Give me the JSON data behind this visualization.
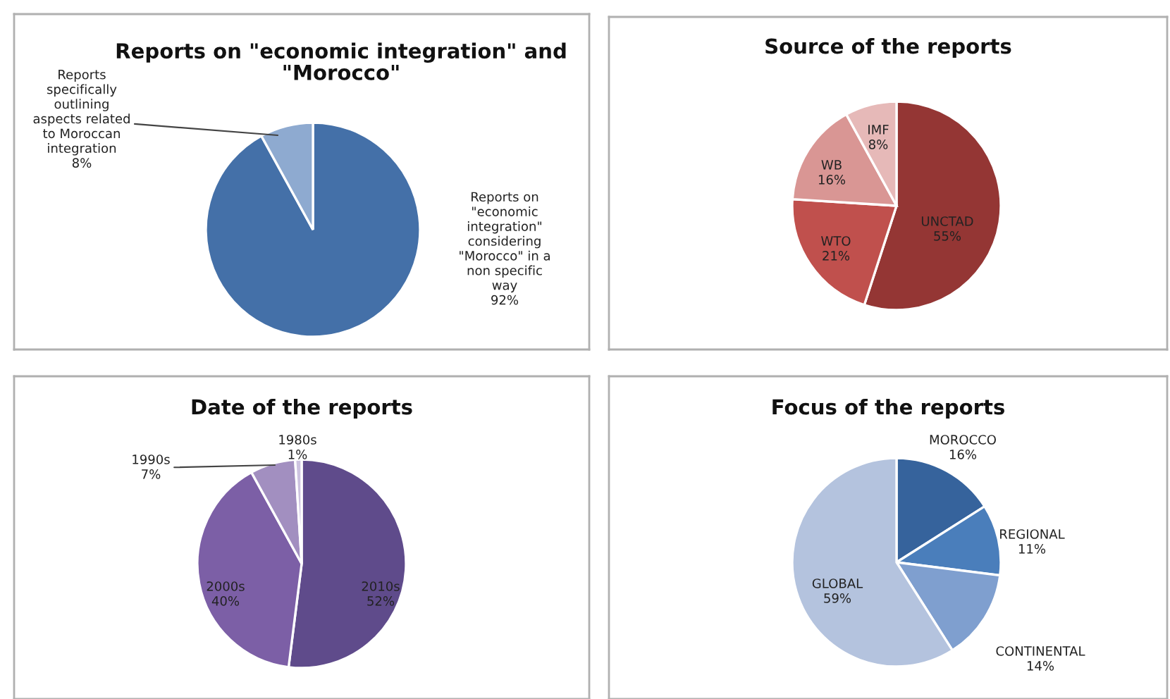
{
  "chart_data": [
    {
      "type": "pie",
      "title": "Reports on \"economic integration\" and\n\"Morocco\"",
      "categories": [
        "Reports on\n\"economic\nintegration\"\nconsidering\n\"Morocco\" in a\nnon specific\nway",
        "Reports\nspecifically\noutlining\naspects related\nto Moroccan\nintegration"
      ],
      "values": [
        92,
        8
      ],
      "colors": [
        "#4470a8",
        "#8eaad0"
      ],
      "value_labels": [
        "92%",
        "8%"
      ]
    },
    {
      "type": "pie",
      "title": "Source of the reports",
      "categories": [
        "UNCTAD",
        "WTO",
        "WB",
        "IMF"
      ],
      "values": [
        55,
        21,
        16,
        8
      ],
      "colors": [
        "#943634",
        "#c0504d",
        "#d99694",
        "#e6b9b8"
      ],
      "value_labels": [
        "55%",
        "21%",
        "16%",
        "8%"
      ]
    },
    {
      "type": "pie",
      "title": "Date of the reports",
      "categories": [
        "2010s",
        "2000s",
        "1990s",
        "1980s"
      ],
      "values": [
        52,
        40,
        7,
        1
      ],
      "colors": [
        "#5f4b8b",
        "#7c5fa6",
        "#a28fc0",
        "#cdc3e0"
      ],
      "value_labels": [
        "52%",
        "40%",
        "7%",
        "1%"
      ]
    },
    {
      "type": "pie",
      "title": "Focus of the reports",
      "categories": [
        "MOROCCO",
        "REGIONAL",
        "CONTINENTAL",
        "GLOBAL"
      ],
      "values": [
        16,
        11,
        14,
        59
      ],
      "colors": [
        "#36639c",
        "#4a7ebb",
        "#7f9fcf",
        "#b4c3de"
      ],
      "value_labels": [
        "16%",
        "11%",
        "14%",
        "59%"
      ]
    }
  ]
}
